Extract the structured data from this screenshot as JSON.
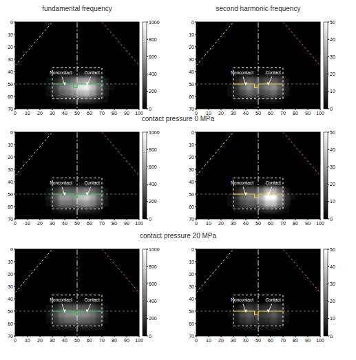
{
  "figure": {
    "column_titles": [
      "fundamental frequency",
      "second harmonic frequency"
    ],
    "row_labels": [
      "contact pressure 0 MPa",
      "contact pressure 20 MPa"
    ]
  },
  "chart_data": [
    {
      "type": "heatmap",
      "xlim": [
        0,
        100
      ],
      "xticks": [
        0,
        10,
        20,
        30,
        40,
        50,
        60,
        70,
        80,
        90,
        100
      ],
      "ylim": [
        70,
        0
      ],
      "yticks": [
        0,
        10,
        20,
        30,
        40,
        50,
        60,
        70
      ],
      "x_bins": [
        20,
        25,
        30,
        35,
        40,
        45,
        50,
        55,
        60,
        65,
        70,
        75,
        80
      ],
      "y_bins": [
        40,
        45,
        50,
        55,
        60,
        65
      ],
      "cells": [
        [
          0,
          0,
          20,
          40,
          60,
          80,
          100,
          120,
          100,
          60,
          20,
          0
        ],
        [
          0,
          30,
          120,
          250,
          350,
          450,
          600,
          650,
          500,
          300,
          100,
          20
        ],
        [
          20,
          80,
          250,
          450,
          550,
          700,
          900,
          950,
          750,
          450,
          150,
          30
        ],
        [
          10,
          50,
          180,
          350,
          450,
          550,
          700,
          750,
          600,
          350,
          100,
          20
        ],
        [
          0,
          10,
          50,
          100,
          150,
          200,
          250,
          250,
          200,
          100,
          30,
          0
        ]
      ],
      "color_range": [
        0,
        1000
      ],
      "color_ticks": [
        0,
        200,
        400,
        600,
        800,
        1000
      ],
      "annotations": [
        "Noncontact",
        "Contact"
      ]
    },
    {
      "type": "heatmap",
      "xlim": [
        0,
        100
      ],
      "xticks": [
        0,
        10,
        20,
        30,
        40,
        50,
        60,
        70,
        80,
        90,
        100
      ],
      "ylim": [
        70,
        0
      ],
      "yticks": [
        0,
        10,
        20,
        30,
        40,
        50,
        60,
        70
      ],
      "x_bins": [
        20,
        25,
        30,
        35,
        40,
        45,
        50,
        55,
        60,
        65,
        70,
        75,
        80
      ],
      "y_bins": [
        40,
        45,
        50,
        55,
        60,
        65
      ],
      "cells": [
        [
          0,
          0,
          1,
          2,
          3,
          3,
          2,
          3,
          3,
          2,
          1,
          0
        ],
        [
          0,
          1,
          5,
          12,
          18,
          15,
          12,
          16,
          18,
          12,
          4,
          0
        ],
        [
          0,
          3,
          10,
          20,
          28,
          22,
          18,
          24,
          28,
          18,
          6,
          1
        ],
        [
          0,
          2,
          7,
          14,
          20,
          16,
          13,
          17,
          20,
          13,
          4,
          0
        ],
        [
          0,
          0,
          2,
          4,
          5,
          4,
          3,
          4,
          5,
          3,
          1,
          0
        ]
      ],
      "color_range": [
        0,
        50
      ],
      "color_ticks": [
        0,
        10,
        20,
        30,
        40,
        50
      ],
      "annotations": [
        "Noncontact",
        "Contact"
      ]
    },
    {
      "type": "heatmap",
      "xlim": [
        0,
        100
      ],
      "xticks": [
        0,
        10,
        20,
        30,
        40,
        50,
        60,
        70,
        80,
        90,
        100
      ],
      "ylim": [
        70,
        0
      ],
      "yticks": [
        0,
        10,
        20,
        30,
        40,
        50,
        60,
        70
      ],
      "x_bins": [
        20,
        25,
        30,
        35,
        40,
        45,
        50,
        55,
        60,
        65,
        70,
        75,
        80
      ],
      "y_bins": [
        40,
        45,
        50,
        55,
        60,
        65
      ],
      "cells": [
        [
          0,
          0,
          20,
          50,
          60,
          60,
          70,
          80,
          60,
          40,
          10,
          0
        ],
        [
          0,
          40,
          180,
          350,
          380,
          350,
          450,
          500,
          400,
          250,
          80,
          10
        ],
        [
          20,
          100,
          350,
          600,
          600,
          550,
          750,
          800,
          650,
          400,
          120,
          20
        ],
        [
          10,
          60,
          250,
          450,
          450,
          420,
          550,
          600,
          500,
          300,
          90,
          10
        ],
        [
          0,
          20,
          60,
          120,
          120,
          110,
          150,
          160,
          130,
          80,
          20,
          0
        ]
      ],
      "color_range": [
        0,
        1000
      ],
      "color_ticks": [
        0,
        200,
        400,
        600,
        800,
        1000
      ],
      "annotations": [
        "Noncontact",
        "Contact"
      ]
    },
    {
      "type": "heatmap",
      "xlim": [
        0,
        100
      ],
      "xticks": [
        0,
        10,
        20,
        30,
        40,
        50,
        60,
        70,
        80,
        90,
        100
      ],
      "ylim": [
        70,
        0
      ],
      "yticks": [
        0,
        10,
        20,
        30,
        40,
        50,
        60,
        70
      ],
      "x_bins": [
        20,
        25,
        30,
        35,
        40,
        45,
        50,
        55,
        60,
        65,
        70,
        75,
        80
      ],
      "y_bins": [
        40,
        45,
        50,
        55,
        60,
        65
      ],
      "cells": [
        [
          0,
          0,
          1,
          2,
          3,
          3,
          3,
          4,
          4,
          3,
          1,
          0
        ],
        [
          0,
          1,
          5,
          12,
          16,
          16,
          22,
          35,
          35,
          22,
          6,
          1
        ],
        [
          0,
          3,
          10,
          20,
          25,
          25,
          35,
          50,
          50,
          32,
          10,
          2
        ],
        [
          0,
          2,
          7,
          14,
          18,
          18,
          25,
          38,
          38,
          24,
          7,
          1
        ],
        [
          0,
          0,
          2,
          4,
          5,
          5,
          7,
          10,
          10,
          6,
          2,
          0
        ]
      ],
      "color_range": [
        0,
        50
      ],
      "color_ticks": [
        0,
        10,
        20,
        30,
        40,
        50
      ],
      "annotations": [
        "Noncontact",
        "Contact"
      ]
    },
    {
      "type": "heatmap",
      "xlim": [
        0,
        100
      ],
      "xticks": [
        0,
        10,
        20,
        30,
        40,
        50,
        60,
        70,
        80,
        90,
        100
      ],
      "ylim": [
        70,
        0
      ],
      "yticks": [
        0,
        10,
        20,
        30,
        40,
        50,
        60,
        70
      ],
      "x_bins": [
        20,
        25,
        30,
        35,
        40,
        45,
        50,
        55,
        60,
        65,
        70,
        75,
        80
      ],
      "y_bins": [
        40,
        45,
        50,
        55,
        60,
        65
      ],
      "cells": [
        [
          0,
          0,
          20,
          40,
          50,
          50,
          50,
          50,
          40,
          20,
          0,
          0
        ],
        [
          0,
          30,
          150,
          280,
          330,
          330,
          330,
          320,
          280,
          180,
          50,
          0
        ],
        [
          10,
          80,
          280,
          480,
          550,
          550,
          550,
          530,
          450,
          300,
          90,
          10
        ],
        [
          10,
          60,
          200,
          350,
          400,
          400,
          400,
          380,
          330,
          220,
          60,
          10
        ],
        [
          0,
          10,
          50,
          90,
          100,
          100,
          100,
          100,
          80,
          50,
          10,
          0
        ]
      ],
      "color_range": [
        0,
        1000
      ],
      "color_ticks": [
        0,
        200,
        400,
        600,
        800,
        1000
      ],
      "annotations": [
        "Noncontact",
        "Contact"
      ]
    },
    {
      "type": "heatmap",
      "xlim": [
        0,
        100
      ],
      "xticks": [
        0,
        10,
        20,
        30,
        40,
        50,
        60,
        70,
        80,
        90,
        100
      ],
      "ylim": [
        70,
        0
      ],
      "yticks": [
        0,
        10,
        20,
        30,
        40,
        50,
        60,
        70
      ],
      "x_bins": [
        20,
        25,
        30,
        35,
        40,
        45,
        50,
        55,
        60,
        65,
        70,
        75,
        80
      ],
      "y_bins": [
        40,
        45,
        50,
        55,
        60,
        65
      ],
      "cells": [
        [
          0,
          0,
          1,
          1,
          2,
          2,
          1,
          2,
          2,
          1,
          0,
          0
        ],
        [
          0,
          1,
          3,
          8,
          12,
          10,
          8,
          10,
          12,
          8,
          2,
          0
        ],
        [
          0,
          2,
          6,
          14,
          18,
          14,
          11,
          14,
          18,
          12,
          4,
          0
        ],
        [
          0,
          1,
          4,
          10,
          13,
          10,
          8,
          10,
          13,
          9,
          3,
          0
        ],
        [
          0,
          0,
          1,
          3,
          4,
          3,
          2,
          3,
          4,
          2,
          1,
          0
        ]
      ],
      "color_range": [
        0,
        50
      ],
      "color_ticks": [
        0,
        10,
        20,
        30,
        40,
        50
      ],
      "annotations": [
        "Noncontact",
        "Contact"
      ]
    }
  ]
}
